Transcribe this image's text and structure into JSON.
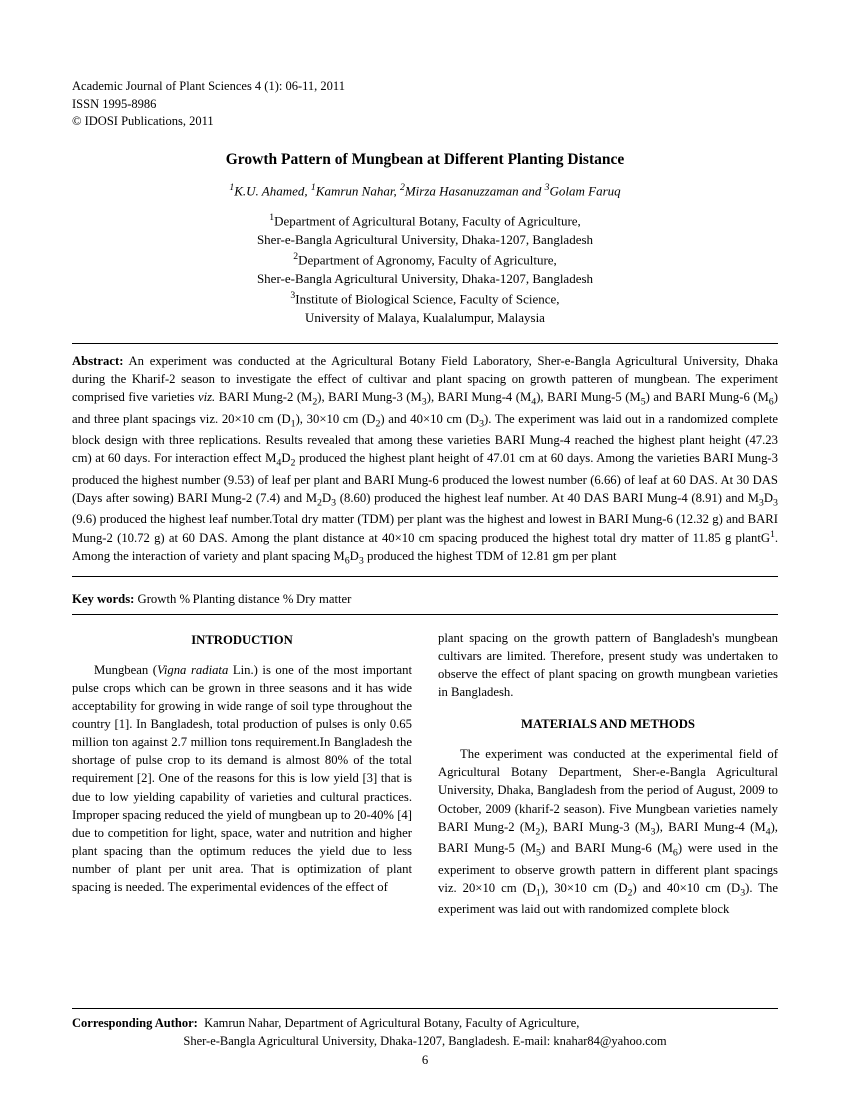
{
  "header": {
    "line1": "Academic Journal of Plant Sciences 4 (1): 06-11, 2011",
    "line2": "ISSN 1995-8986",
    "line3": "© IDOSI Publications, 2011"
  },
  "title": "Growth Pattern of Mungbean at Different Planting Distance",
  "authors_html": "<sup>1</sup>K.U. Ahamed, <sup>1</sup>Kamrun Nahar, <sup>2</sup>Mirza Hasanuzzaman and <sup>3</sup>Golam Faruq",
  "affiliations_html": "<sup>1</sup>Department of Agricultural Botany, Faculty of Agriculture,<br>Sher-e-Bangla Agricultural University, Dhaka-1207, Bangladesh<br><sup>2</sup>Department of Agronomy, Faculty of Agriculture,<br>Sher-e-Bangla Agricultural University, Dhaka-1207, Bangladesh<br><sup>3</sup>Institute of Biological Science, Faculty of Science,<br>University of Malaya, Kualalumpur, Malaysia",
  "abstract_label": "Abstract:",
  "abstract_html": "An experiment was conducted at the Agricultural Botany Field Laboratory, Sher-e-Bangla Agricultural University, Dhaka during the Kharif-2 season to investigate the effect of cultivar and plant spacing on growth patteren of mungbean. The experiment comprised five varieties <i>viz.</i> BARI Mung-2 (M<sub>2</sub>), BARI Mung-3 (M<sub>3</sub>), BARI Mung-4 (M<sub>4</sub>), BARI Mung-5 (M<sub>5</sub>) and BARI Mung-6 (M<sub>6</sub>) and three plant spacings viz. 20×10 cm (D<sub>1</sub>), 30×10 cm (D<sub>2</sub>) and 40×10 cm (D<sub>3</sub>). The experiment was laid out in a randomized complete block design with three replications. Results revealed that among these varieties BARI Mung-4 reached the highest plant height (47.23 cm) at 60 days. For interaction effect M<sub>4</sub>D<sub>2</sub> produced the highest plant height of 47.01 cm at 60 days. Among the varieties BARI Mung-3 produced the highest number (9.53) of leaf per plant and BARI Mung-6 produced the lowest number (6.66) of leaf at 60 DAS. At 30 DAS (Days after sowing) BARI Mung-2 (7.4) and M<sub>2</sub>D<sub>3</sub> (8.60) produced the highest leaf number. At 40 DAS BARI Mung-4 (8.91) and M<sub>3</sub>D<sub>3</sub> (9.6) produced the highest leaf number.Total dry matter (TDM) per plant was the highest and lowest in BARI Mung-6 (12.32 g) and BARI Mung-2 (10.72 g) at 60 DAS. Among the plant distance at 40×10 cm spacing produced the highest total dry matter of 11.85 g plantG<sup>1</sup>. Among the interaction of variety and plant spacing M<sub>6</sub>D<sub>3</sub> produced the highest TDM of 12.81 gm per plant",
  "keywords_label": "Key words:",
  "keywords_html": "Growth <span class=\"sep\">%</span> Planting distance <span class=\"sep\">%</span> Dry matter",
  "intro_head": "INTRODUCTION",
  "intro_html": "Mungbean (<i>Vigna radiata</i> Lin.) is one of the most important pulse crops which can be grown in three seasons and it has wide acceptability for growing in wide range of soil type throughout the country [1]. In Bangladesh, total production of pulses is only 0.65 million ton against 2.7 million tons requirement.In Bangladesh the shortage of pulse crop to its demand is almost 80% of the total requirement [2]. One of the reasons for this is low yield [3] that is due to low yielding capability of varieties and cultural practices. Improper spacing reduced the yield of mungbean up to 20-40% [4] due to competition for light, space, water and nutrition and higher plant spacing than the optimum reduces the yield due to less number of plant per unit area. That is optimization of plant spacing is needed. The experimental evidences of the effect of",
  "right_top_html": "plant spacing on the growth pattern of Bangladesh's mungbean cultivars are limited. Therefore, present study was undertaken to observe the effect of plant spacing on growth mungbean varieties in Bangladesh.",
  "methods_head": "MATERIALS AND METHODS",
  "methods_html": "The experiment was conducted at the experimental field of Agricultural Botany Department, Sher-e-Bangla Agricultural University, Dhaka, Bangladesh from the period of August, 2009 to October, 2009 (kharif-2 season). Five Mungbean varieties namely BARI Mung-2 (M<sub>2</sub>), BARI Mung-3 (M<sub>3</sub>), BARI Mung-4 (M<sub>4</sub>), BARI Mung-5 (M<sub>5</sub>) and BARI Mung-6 (M<sub>6</sub>) were used in the experiment to observe growth pattern in different plant spacings viz. 20×10 cm (D<sub>1</sub>), 30×10 cm (D<sub>2</sub>) and 40×10 cm (D<sub>3</sub>). The experiment  was laid out with randomized complete block",
  "footer": {
    "label": "Corresponding Author:",
    "line1": "Kamrun Nahar, Department of Agricultural Botany, Faculty of Agriculture,",
    "line2": "Sher-e-Bangla Agricultural University, Dhaka-1207, Bangladesh. E-mail: knahar84@yahoo.com",
    "page": "6"
  }
}
